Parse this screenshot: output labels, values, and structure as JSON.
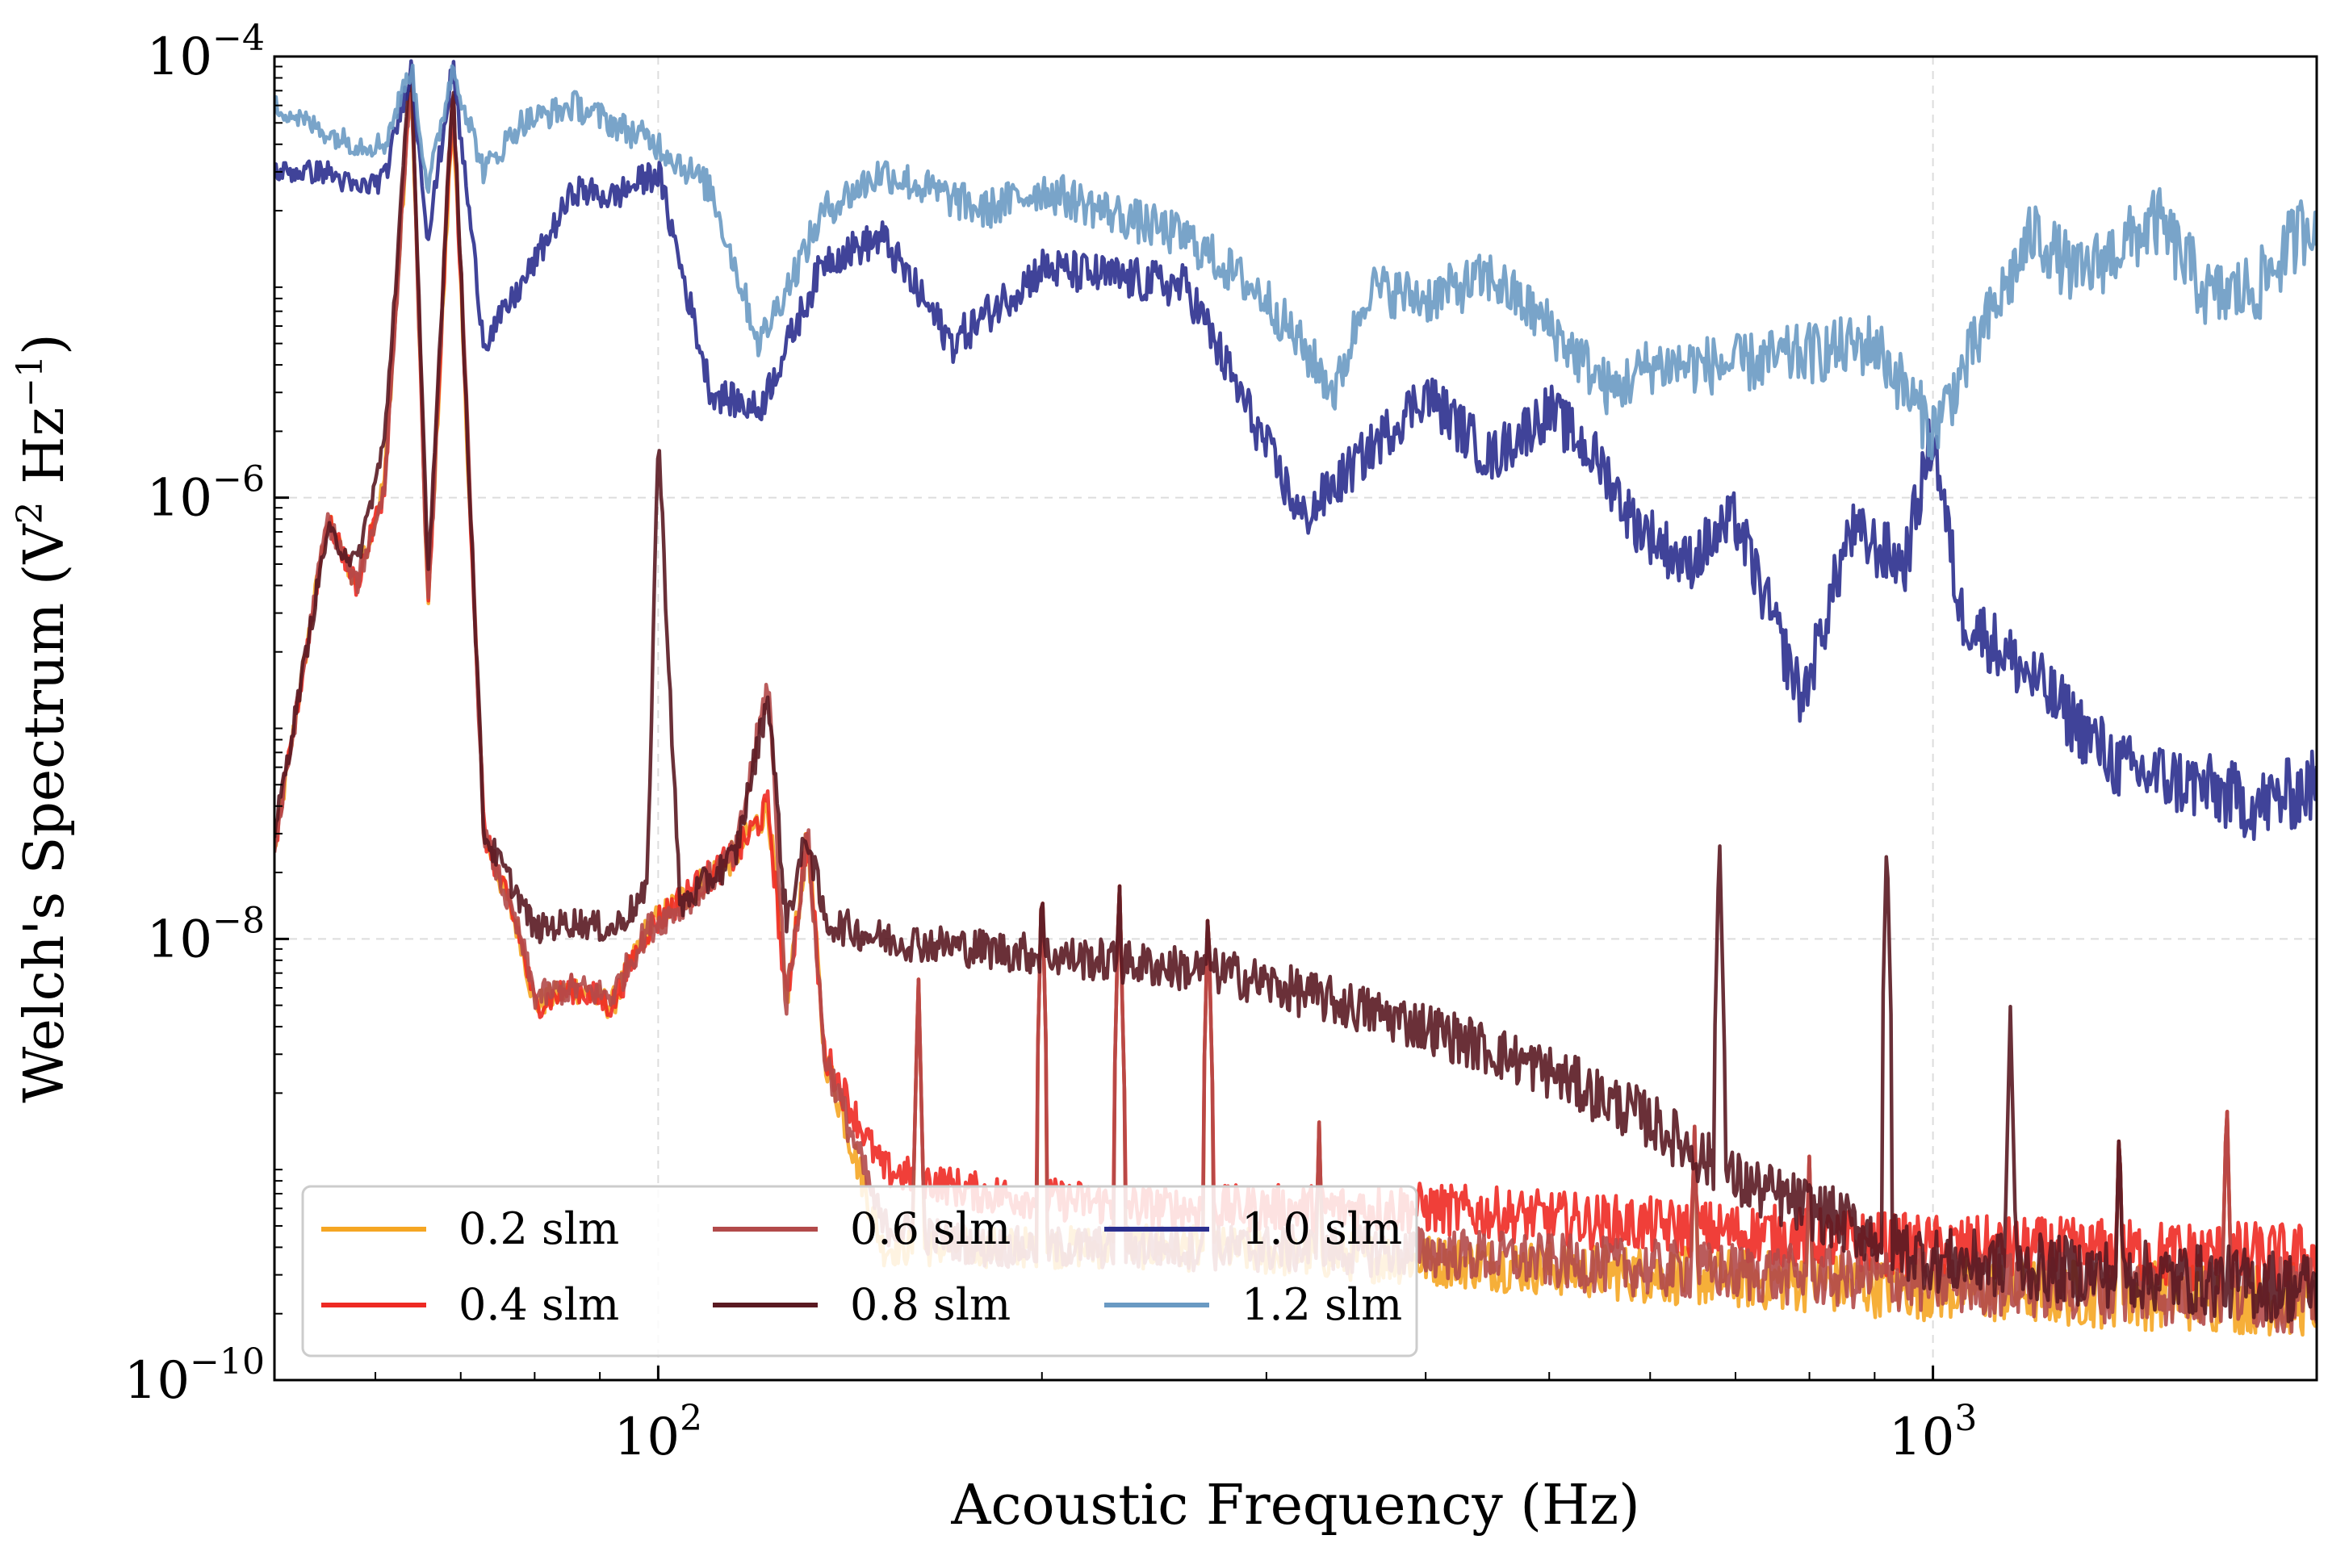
{
  "chart_data": {
    "type": "line",
    "title": "",
    "xlabel": "Acoustic Frequency (Hz)",
    "ylabel_parts": {
      "prefix": "Welch's Spectrum (V",
      "sup1": "2",
      "mid": " Hz",
      "sup2": "−1",
      "suffix": ")"
    },
    "xscale": "log",
    "yscale": "log",
    "xlim": [
      50,
      2000
    ],
    "ylim": [
      1e-10,
      0.0001
    ],
    "grid": true,
    "x_ticks": [
      {
        "value": 100,
        "base": "10",
        "exp": "2"
      },
      {
        "value": 1000,
        "base": "10",
        "exp": "3"
      }
    ],
    "y_ticks": [
      {
        "value": 0.0001,
        "base": "10",
        "exp": "−4"
      },
      {
        "value": 1e-06,
        "base": "10",
        "exp": "−6"
      },
      {
        "value": 1e-08,
        "base": "10",
        "exp": "−8"
      },
      {
        "value": 1e-10,
        "base": "10",
        "exp": "−10"
      }
    ],
    "legend": {
      "position": "lower-left",
      "columns": 3
    },
    "series": [
      {
        "name": "0.2 slm",
        "color": "#f5a623",
        "points": [
          [
            50,
            2.5e-08
          ],
          [
            55,
            8e-07
          ],
          [
            58,
            4e-07
          ],
          [
            61,
            1.2e-06
          ],
          [
            64,
            8e-05
          ],
          [
            66,
            3e-07
          ],
          [
            69,
            6e-05
          ],
          [
            73,
            3e-08
          ],
          [
            78,
            1e-08
          ],
          [
            80,
            5e-09
          ],
          [
            86,
            6e-09
          ],
          [
            92,
            5e-09
          ],
          [
            98,
            1.1e-08
          ],
          [
            104,
            1.5e-08
          ],
          [
            115,
            2.4e-08
          ],
          [
            122,
            4e-08
          ],
          [
            126,
            5e-09
          ],
          [
            131,
            3e-08
          ],
          [
            135,
            3e-09
          ],
          [
            150,
            4e-10
          ],
          [
            180,
            4e-10
          ],
          [
            250,
            4e-10
          ],
          [
            400,
            3.5e-10
          ],
          [
            600,
            3e-10
          ],
          [
            1000,
            2.6e-10
          ],
          [
            2000,
            2.3e-10
          ]
        ],
        "peaks": [
          [
            160,
            7e-09
          ],
          [
            200,
            2e-08
          ],
          [
            230,
            2e-08
          ],
          [
            270,
            1.5e-08
          ],
          [
            330,
            1.5e-09
          ],
          [
            650,
            1.5e-09
          ],
          [
            800,
            1.1e-09
          ],
          [
            1400,
            1.5e-09
          ],
          [
            1700,
            2e-09
          ]
        ]
      },
      {
        "name": "0.4 slm",
        "color": "#ee2a24",
        "points": [
          [
            50,
            2.5e-08
          ],
          [
            55,
            8e-07
          ],
          [
            58,
            4e-07
          ],
          [
            61,
            1.1e-06
          ],
          [
            64,
            9e-05
          ],
          [
            66,
            3e-07
          ],
          [
            69,
            7e-05
          ],
          [
            73,
            3e-08
          ],
          [
            78,
            1e-08
          ],
          [
            80,
            5e-09
          ],
          [
            86,
            6e-09
          ],
          [
            92,
            5e-09
          ],
          [
            98,
            1.1e-08
          ],
          [
            104,
            1.5e-08
          ],
          [
            115,
            2.4e-08
          ],
          [
            122,
            4e-08
          ],
          [
            126,
            5e-09
          ],
          [
            131,
            3e-08
          ],
          [
            135,
            3e-09
          ],
          [
            150,
            9e-10
          ],
          [
            180,
            7e-10
          ],
          [
            250,
            6e-10
          ],
          [
            400,
            6e-10
          ],
          [
            600,
            5e-10
          ],
          [
            1000,
            4e-10
          ],
          [
            2000,
            3.5e-10
          ]
        ],
        "peaks": [
          [
            160,
            7e-09
          ],
          [
            200,
            2e-08
          ],
          [
            230,
            2e-08
          ],
          [
            270,
            1.5e-08
          ],
          [
            330,
            1.5e-09
          ],
          [
            650,
            1.5e-09
          ],
          [
            800,
            1.1e-09
          ],
          [
            1400,
            1.5e-09
          ],
          [
            1700,
            2e-09
          ]
        ]
      },
      {
        "name": "0.6 slm",
        "color": "#b24a4a",
        "points": [
          [
            50,
            2.5e-08
          ],
          [
            55,
            8e-07
          ],
          [
            58,
            4e-07
          ],
          [
            61,
            1.1e-06
          ],
          [
            64,
            9e-05
          ],
          [
            66,
            3e-07
          ],
          [
            69,
            8e-05
          ],
          [
            73,
            3e-08
          ],
          [
            78,
            1e-08
          ],
          [
            80,
            5.5e-09
          ],
          [
            86,
            6e-09
          ],
          [
            92,
            5.5e-09
          ],
          [
            98,
            1.1e-08
          ],
          [
            104,
            1.4e-08
          ],
          [
            115,
            2.4e-08
          ],
          [
            122,
            1.5e-07
          ],
          [
            126,
            5e-09
          ],
          [
            131,
            3e-08
          ],
          [
            135,
            3e-09
          ],
          [
            150,
            5e-10
          ],
          [
            180,
            4e-10
          ],
          [
            250,
            4e-10
          ],
          [
            400,
            3.8e-10
          ],
          [
            600,
            3.2e-10
          ],
          [
            1000,
            2.8e-10
          ],
          [
            2000,
            2.4e-10
          ]
        ],
        "peaks": [
          [
            160,
            7e-09
          ],
          [
            200,
            2e-08
          ],
          [
            230,
            2e-08
          ],
          [
            270,
            1.5e-08
          ],
          [
            330,
            1.5e-09
          ],
          [
            650,
            1.5e-09
          ],
          [
            800,
            1.1e-09
          ],
          [
            1400,
            1.5e-09
          ],
          [
            1700,
            2e-09
          ]
        ]
      },
      {
        "name": "0.8 slm",
        "color": "#5a1a22",
        "points": [
          [
            50,
            3e-08
          ],
          [
            55,
            7e-07
          ],
          [
            58,
            5e-07
          ],
          [
            61,
            1.8e-06
          ],
          [
            64,
            0.0001
          ],
          [
            66,
            4e-07
          ],
          [
            69,
            8e-05
          ],
          [
            73,
            3e-08
          ],
          [
            78,
            1.5e-08
          ],
          [
            80,
            1.1e-08
          ],
          [
            86,
            1.2e-08
          ],
          [
            92,
            1.1e-08
          ],
          [
            98,
            1.6e-08
          ],
          [
            100,
            2e-06
          ],
          [
            104,
            1.4e-08
          ],
          [
            115,
            2.4e-08
          ],
          [
            122,
            1.3e-07
          ],
          [
            126,
            1.2e-08
          ],
          [
            131,
            3e-08
          ],
          [
            135,
            1.2e-08
          ],
          [
            150,
            1e-08
          ],
          [
            200,
            8.5e-09
          ],
          [
            280,
            7e-09
          ],
          [
            400,
            4e-09
          ],
          [
            500,
            2.5e-09
          ],
          [
            600,
            1.5e-09
          ],
          [
            700,
            8e-10
          ],
          [
            800,
            6e-10
          ],
          [
            1000,
            3.5e-10
          ],
          [
            2000,
            2.6e-10
          ]
        ],
        "peaks": [
          [
            200,
            2e-08
          ],
          [
            230,
            2e-08
          ],
          [
            270,
            1.5e-08
          ],
          [
            680,
            3e-08
          ],
          [
            920,
            3e-08
          ],
          [
            1150,
            5e-09
          ],
          [
            1400,
            1.5e-09
          ]
        ]
      },
      {
        "name": "1.0 slm",
        "color": "#2b2f8e",
        "points": [
          [
            50,
            3e-05
          ],
          [
            55,
            3e-05
          ],
          [
            58,
            2.5e-05
          ],
          [
            61,
            2.8e-05
          ],
          [
            64,
            9e-05
          ],
          [
            66,
            1.5e-05
          ],
          [
            69,
            9e-05
          ],
          [
            73,
            5e-06
          ],
          [
            78,
            9e-06
          ],
          [
            86,
            2.5e-05
          ],
          [
            92,
            2.3e-05
          ],
          [
            100,
            3e-05
          ],
          [
            110,
            3e-06
          ],
          [
            120,
            2.5e-06
          ],
          [
            135,
            1.2e-05
          ],
          [
            150,
            1.5e-05
          ],
          [
            170,
            5e-06
          ],
          [
            200,
            1.1e-05
          ],
          [
            260,
            9e-06
          ],
          [
            320,
            8e-07
          ],
          [
            400,
            3e-06
          ],
          [
            450,
            1.5e-06
          ],
          [
            500,
            2.5e-06
          ],
          [
            550,
            1.4e-06
          ],
          [
            580,
            8e-07
          ],
          [
            640,
            5e-07
          ],
          [
            700,
            8e-07
          ],
          [
            790,
            1.2e-07
          ],
          [
            860,
            7e-07
          ],
          [
            950,
            5e-07
          ],
          [
            1000,
            2e-06
          ],
          [
            1050,
            3e-07
          ],
          [
            1200,
            1.5e-07
          ],
          [
            1400,
            6e-08
          ],
          [
            1600,
            5e-08
          ],
          [
            1800,
            4e-08
          ],
          [
            2000,
            5e-08
          ]
        ]
      },
      {
        "name": "1.2 slm",
        "color": "#6a9ac3",
        "points": [
          [
            50,
            6e-05
          ],
          [
            55,
            4.5e-05
          ],
          [
            58,
            4e-05
          ],
          [
            61,
            4e-05
          ],
          [
            64,
            9e-05
          ],
          [
            66,
            2.5e-05
          ],
          [
            69,
            9e-05
          ],
          [
            73,
            3e-05
          ],
          [
            78,
            5e-05
          ],
          [
            86,
            6e-05
          ],
          [
            92,
            5e-05
          ],
          [
            100,
            4e-05
          ],
          [
            110,
            2.5e-05
          ],
          [
            120,
            5e-06
          ],
          [
            135,
            2e-05
          ],
          [
            150,
            3e-05
          ],
          [
            180,
            2e-05
          ],
          [
            200,
            2.5e-05
          ],
          [
            260,
            1.5e-05
          ],
          [
            300,
            8e-06
          ],
          [
            340,
            3e-06
          ],
          [
            360,
            9e-06
          ],
          [
            400,
            8e-06
          ],
          [
            450,
            1e-05
          ],
          [
            500,
            6e-06
          ],
          [
            560,
            3e-06
          ],
          [
            600,
            4e-06
          ],
          [
            700,
            4e-06
          ],
          [
            800,
            4.5e-06
          ],
          [
            900,
            5e-06
          ],
          [
            1000,
            2e-06
          ],
          [
            1100,
            6e-06
          ],
          [
            1200,
            1.6e-05
          ],
          [
            1300,
            1e-05
          ],
          [
            1500,
            1.8e-05
          ],
          [
            1650,
            8e-06
          ],
          [
            1800,
            9e-06
          ],
          [
            2000,
            2e-05
          ]
        ]
      }
    ]
  }
}
